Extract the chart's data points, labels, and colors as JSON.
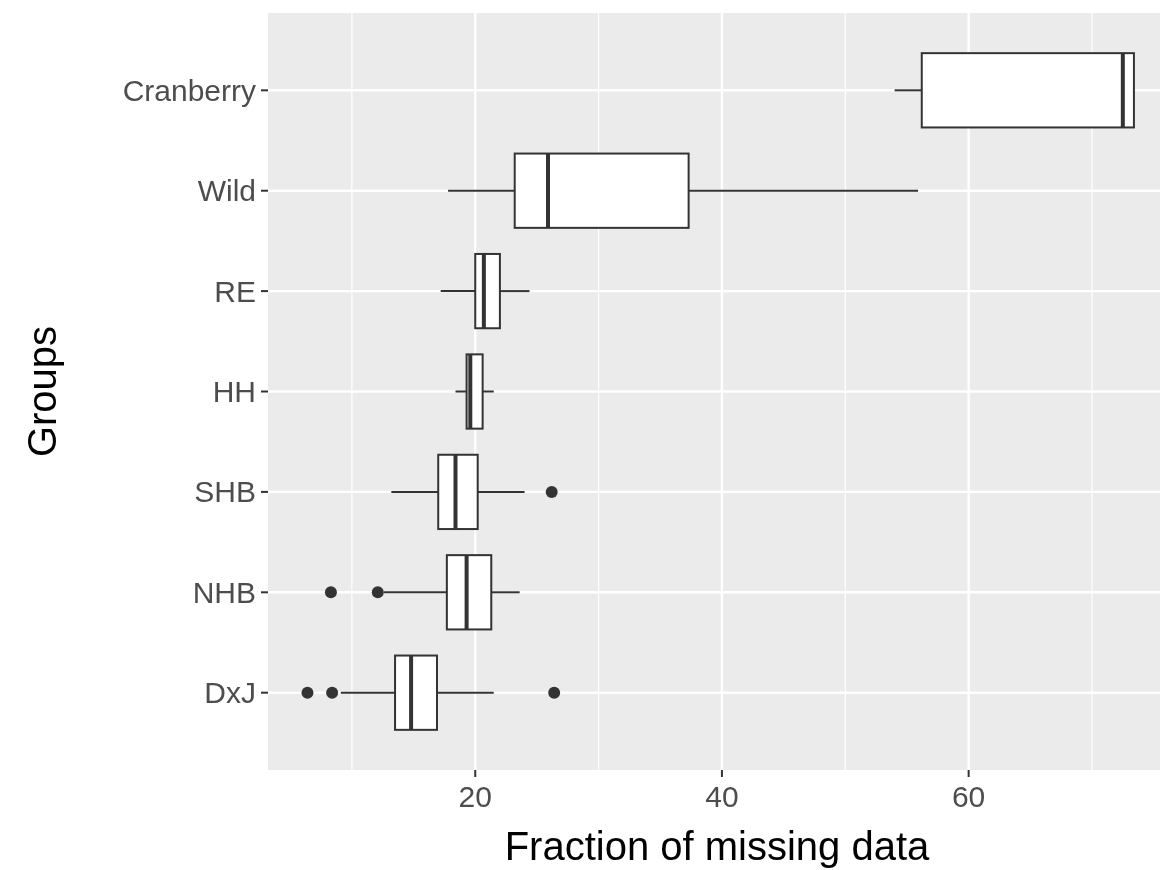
{
  "chart_data": {
    "type": "box",
    "orientation": "horizontal",
    "xlabel": "Fraction of missing data",
    "ylabel": "Groups",
    "categories": [
      "Cranberry",
      "Wild",
      "RE",
      "HH",
      "SHB",
      "NHB",
      "DxJ"
    ],
    "boxes": [
      {
        "low": 54.0,
        "q1": 56.2,
        "median": 72.5,
        "q3": 73.4,
        "high": 73.4
      },
      {
        "low": 17.8,
        "q1": 23.2,
        "median": 25.9,
        "q3": 37.3,
        "high": 55.9
      },
      {
        "low": 17.2,
        "q1": 20.0,
        "median": 20.7,
        "q3": 22.0,
        "high": 24.4
      },
      {
        "low": 18.4,
        "q1": 19.3,
        "median": 19.6,
        "q3": 20.6,
        "high": 21.5
      },
      {
        "low": 13.2,
        "q1": 17.0,
        "median": 18.4,
        "q3": 20.2,
        "high": 24.0,
        "outliers": [
          26.2
        ]
      },
      {
        "low": 12.6,
        "q1": 17.7,
        "median": 19.3,
        "q3": 21.3,
        "high": 23.6,
        "outliers": [
          8.3,
          12.1
        ]
      },
      {
        "low": 9.1,
        "q1": 13.5,
        "median": 14.8,
        "q3": 16.9,
        "high": 21.5,
        "outliers": [
          6.4,
          8.4,
          26.4
        ]
      }
    ],
    "color": "#ffffff",
    "xlim": [
      3.2,
      76
    ],
    "xticks": [
      20,
      40,
      60
    ],
    "grid": true
  }
}
